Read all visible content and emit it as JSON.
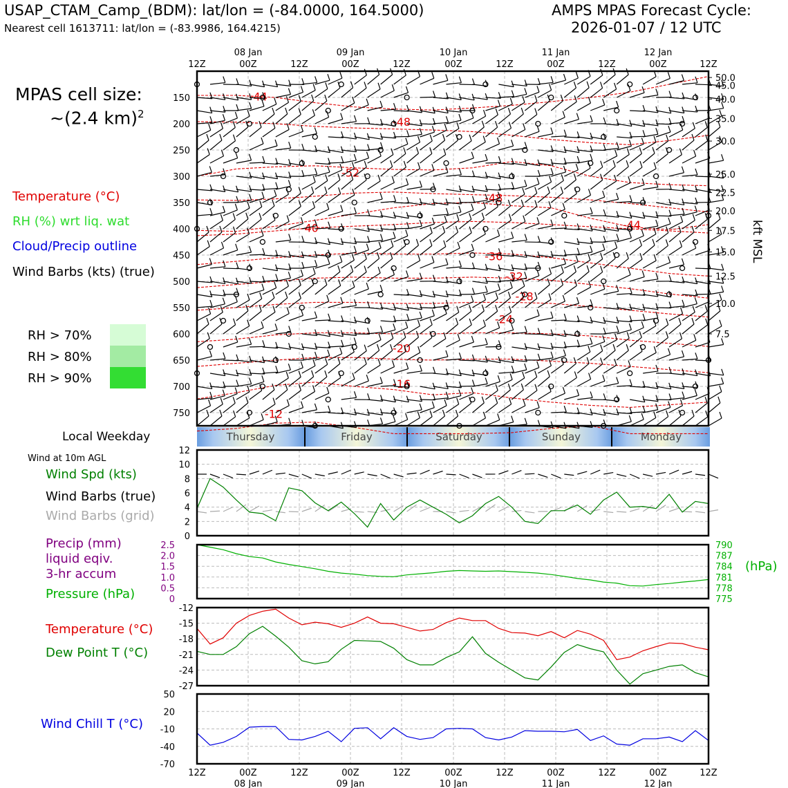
{
  "header": {
    "station_line": "USAP_CTAM_Camp_(BDM): lat/lon = (-84.0000, 164.5000)",
    "cell_line": "Nearest cell 1613711: lat/lon = (-83.9986, 164.4215)",
    "cycle_title": "AMPS MPAS Forecast Cycle:",
    "cycle_value": "2026-01-07 / 12 UTC"
  },
  "side": {
    "cell_size_label": "MPAS cell size:",
    "cell_size_value": "~(2.4 km)",
    "cell_size_exp": "2",
    "legend_temperature": "Temperature (°C)",
    "legend_rh": "RH (%) wrt liq. wat",
    "legend_cloud": "Cloud/Precip outline",
    "legend_barbs": "Wind Barbs (kts) (true)",
    "rh70": "RH > 70%",
    "rh80": "RH > 80%",
    "rh90": "RH > 90%",
    "local_weekday": "Local Weekday",
    "wind_10m": "Wind at 10m AGL",
    "wind_spd": "Wind Spd (kts)",
    "wind_barbs_true": "Wind Barbs (true)",
    "wind_barbs_grid": "Wind Barbs (grid)",
    "precip_l1": "Precip (mm)",
    "precip_l2": "liquid eqiv.",
    "precip_l3": "3-hr accum",
    "pressure": "Pressure (hPa)",
    "pressure_unit": "(hPa)",
    "temp_label": "Temperature (°C)",
    "dew_label": "Dew Point T (°C)",
    "wind_chill_label": "Wind Chill T (°C)",
    "kft_label": "kft MSL"
  },
  "colors": {
    "temperature": "#e00000",
    "rh": "#2ddc2d",
    "cloud": "#0000e0",
    "wind_speed": "#008000",
    "pressure": "#00b000",
    "precip": "#800080",
    "wind_chill": "#0000e0",
    "grid_barb": "#aaaaaa",
    "rh70": "#d6fcd6",
    "rh80": "#a3eba3",
    "rh90": "#33dd33"
  },
  "weekdays": [
    "Thursday",
    "Friday",
    "Saturday",
    "Sunday",
    "Monday"
  ],
  "chart_data": [
    {
      "type": "line",
      "name": "upper-air cross-section",
      "top_time_labels": [
        "12Z",
        "00Z",
        "12Z",
        "00Z",
        "12Z",
        "00Z",
        "12Z",
        "00Z",
        "12Z",
        "00Z",
        "12Z"
      ],
      "top_date_labels": [
        "08 Jan",
        "09 Jan",
        "10 Jan",
        "11 Jan",
        "12 Jan"
      ],
      "pressure_ticks": [
        150,
        200,
        250,
        300,
        350,
        400,
        450,
        500,
        550,
        600,
        650,
        700,
        750
      ],
      "kft_ticks": [
        "50.0",
        "45.0",
        "40.0",
        "35.0",
        "30.0",
        "25.0",
        "22.5",
        "20.0",
        "17.5",
        "15.0",
        "12.5",
        "10.0",
        "7.5"
      ],
      "kft_pressure": [
        112,
        127,
        153,
        190,
        233,
        296,
        331,
        366,
        403,
        444,
        490,
        542,
        600
      ],
      "ylim": [
        790,
        110
      ],
      "isotherms": [
        {
          "t": -44,
          "label": "-44",
          "p": [
            146,
            146,
            150,
            160,
            168,
            172,
            174,
            170,
            165,
            158,
            150,
            140,
            125,
            110
          ],
          "lx": 12,
          "lp": 148
        },
        {
          "t": -48,
          "label": "-48",
          "p": [
            196,
            197,
            200,
            205,
            208,
            210,
            212,
            215,
            222,
            230,
            236,
            240,
            232,
            222
          ],
          "lx": 40,
          "lp": 196
        },
        {
          "t": -52,
          "label": "-52",
          "p": [
            300,
            286,
            282,
            280,
            284,
            287,
            288,
            284,
            272,
            280,
            300,
            312,
            316,
            318
          ],
          "lx": 30,
          "lp": 293
        },
        {
          "t": -48,
          "label": "-48",
          "p": [
            345,
            346,
            343,
            338,
            332,
            330,
            333,
            335,
            337,
            340,
            345,
            352,
            360,
            368
          ],
          "lx": 58,
          "lp": 341
        },
        {
          "t": -40,
          "label": "-40",
          "p": [
            413,
            410,
            404,
            398,
            395,
            392,
            388,
            386,
            388,
            392,
            396,
            400,
            404,
            408
          ],
          "lx": 22,
          "lp": 398
        },
        {
          "t": -44,
          "label": "-44",
          "p": [
            403,
            405,
            395,
            384,
            372,
            360,
            352,
            350,
            356,
            360,
            380,
            396,
            402,
            392
          ],
          "lx": 85,
          "lp": 392
        },
        {
          "t": -36,
          "label": "-36",
          "p": [
            468,
            462,
            455,
            450,
            446,
            448,
            448,
            446,
            448,
            455,
            465,
            475,
            485,
            490
          ],
          "lx": 58,
          "lp": 452
        },
        {
          "t": -32,
          "label": "-32",
          "p": [
            512,
            506,
            500,
            494,
            492,
            494,
            494,
            492,
            494,
            498,
            506,
            514,
            524,
            532
          ],
          "lx": 62,
          "lp": 490
        },
        {
          "t": -28,
          "label": "-28",
          "p": [
            555,
            550,
            544,
            540,
            540,
            542,
            542,
            540,
            540,
            542,
            548,
            555,
            562,
            568
          ],
          "lx": 64,
          "lp": 528
        },
        {
          "t": -24,
          "label": "-24",
          "p": [
            615,
            610,
            602,
            598,
            598,
            600,
            600,
            598,
            598,
            600,
            604,
            612,
            618,
            624
          ],
          "lx": 60,
          "lp": 572
        },
        {
          "t": -20,
          "label": "-20",
          "p": [
            662,
            656,
            650,
            645,
            645,
            648,
            650,
            648,
            648,
            652,
            656,
            662,
            668,
            674
          ],
          "lx": 40,
          "lp": 627
        },
        {
          "t": -16,
          "label": "-16",
          "p": [
            724,
            712,
            698,
            692,
            700,
            706,
            716,
            712,
            722,
            730,
            736,
            740,
            735,
            730
          ],
          "lx": 40,
          "lp": 695
        },
        {
          "t": -12,
          "label": "-12",
          "p": [
            785,
            780,
            770,
            768,
            778,
            790,
            790,
            790,
            788,
            780,
            775,
            790,
            790,
            790
          ],
          "lx": 15,
          "lp": 752
        }
      ]
    },
    {
      "type": "line",
      "name": "10m wind speed",
      "xlabel": "",
      "ylim": [
        0,
        12
      ],
      "yticks": [
        0,
        2,
        4,
        6,
        8,
        10,
        12
      ],
      "series": [
        {
          "name": "Wind Spd (kts)",
          "values": [
            3.8,
            8.0,
            6.8,
            5.0,
            3.3,
            3.1,
            2.1,
            6.7,
            6.3,
            4.6,
            3.5,
            4.7,
            3.1,
            1.2,
            4.5,
            2.2,
            4.0,
            5.0,
            4.0,
            3.0,
            1.8,
            2.8,
            4.5,
            5.5,
            4.0,
            2.0,
            1.7,
            3.5,
            3.5,
            4.3,
            3.0,
            5.0,
            6.1,
            4.0,
            4.1,
            3.8,
            5.8,
            3.3,
            4.8,
            4.5
          ]
        }
      ]
    },
    {
      "type": "line",
      "name": "precip and pressure",
      "ylim_precip": [
        0,
        2.5
      ],
      "yticks_precip": [
        "0",
        "0.5",
        "1.0",
        "1.5",
        "2.0",
        "2.5"
      ],
      "ylim_pressure": [
        775,
        790
      ],
      "yticks_pressure": [
        "775",
        "778",
        "781",
        "784",
        "787",
        "790"
      ],
      "series": [
        {
          "name": "Pressure (hPa)",
          "values": [
            790.0,
            789.3,
            788.6,
            787.5,
            786.7,
            786.3,
            785.2,
            784.5,
            783.9,
            783.3,
            782.6,
            782.1,
            781.8,
            781.4,
            781.2,
            781.1,
            781.6,
            781.9,
            782.2,
            782.6,
            782.8,
            782.7,
            782.6,
            782.7,
            782.5,
            782.3,
            782.1,
            781.7,
            781.2,
            780.6,
            780.2,
            779.6,
            779.3,
            778.6,
            778.5,
            778.9,
            779.2,
            779.6,
            779.9,
            780.3
          ]
        }
      ]
    },
    {
      "type": "line",
      "name": "temperature and dew point",
      "ylim": [
        -27,
        -12
      ],
      "yticks": [
        "-12",
        "-15",
        "-18",
        "-21",
        "-24",
        "-27"
      ],
      "series": [
        {
          "name": "Temperature (°C)",
          "values": [
            -16.0,
            -19.0,
            -17.8,
            -15.0,
            -13.5,
            -12.7,
            -12.3,
            -14.0,
            -15.3,
            -14.8,
            -15.1,
            -15.8,
            -15.0,
            -13.8,
            -15.0,
            -15.1,
            -15.8,
            -16.5,
            -16.2,
            -14.9,
            -14.0,
            -14.5,
            -14.5,
            -16.0,
            -16.8,
            -16.9,
            -17.4,
            -16.6,
            -17.8,
            -16.4,
            -17.1,
            -18.3,
            -22.0,
            -21.5,
            -20.3,
            -19.5,
            -18.8,
            -18.9,
            -19.6,
            -20.1
          ]
        },
        {
          "name": "Dew Point T (°C)",
          "values": [
            -20.4,
            -21.0,
            -21.0,
            -19.5,
            -17.0,
            -15.6,
            -17.5,
            -19.6,
            -22.2,
            -22.8,
            -22.4,
            -20.0,
            -18.3,
            -18.4,
            -18.5,
            -19.8,
            -22.0,
            -23.0,
            -23.0,
            -21.6,
            -20.5,
            -17.6,
            -20.8,
            -22.5,
            -24.0,
            -25.5,
            -25.9,
            -23.4,
            -20.6,
            -19.1,
            -19.9,
            -20.5,
            -24.0,
            -26.7,
            -24.7,
            -24.0,
            -23.3,
            -23.0,
            -24.5,
            -25.3
          ]
        }
      ]
    },
    {
      "type": "line",
      "name": "wind chill",
      "ylim": [
        -70,
        50
      ],
      "yticks": [
        "50",
        "20",
        "-10",
        "-40",
        "-70"
      ],
      "series": [
        {
          "name": "Wind Chill T (°C)",
          "values": [
            -17,
            -38,
            -33,
            -23,
            -7,
            -6,
            -6,
            -28,
            -29,
            -23,
            -14,
            -32,
            -9,
            -8,
            -27,
            -8,
            -23,
            -28,
            -25,
            -10,
            -9,
            -10,
            -25,
            -29,
            -24,
            -13,
            -14,
            -14,
            -15,
            -11,
            -30,
            -22,
            -36,
            -38,
            -27,
            -27,
            -24,
            -32,
            -13,
            -30
          ]
        }
      ]
    },
    {
      "type": "line",
      "name": "bottom time axis",
      "bottom_time_labels": [
        "12Z",
        "00Z",
        "12Z",
        "00Z",
        "12Z",
        "00Z",
        "12Z",
        "00Z",
        "12Z",
        "00Z",
        "12Z"
      ],
      "bottom_date_labels": [
        "08 Jan",
        "09 Jan",
        "10 Jan",
        "11 Jan",
        "12 Jan"
      ]
    }
  ]
}
